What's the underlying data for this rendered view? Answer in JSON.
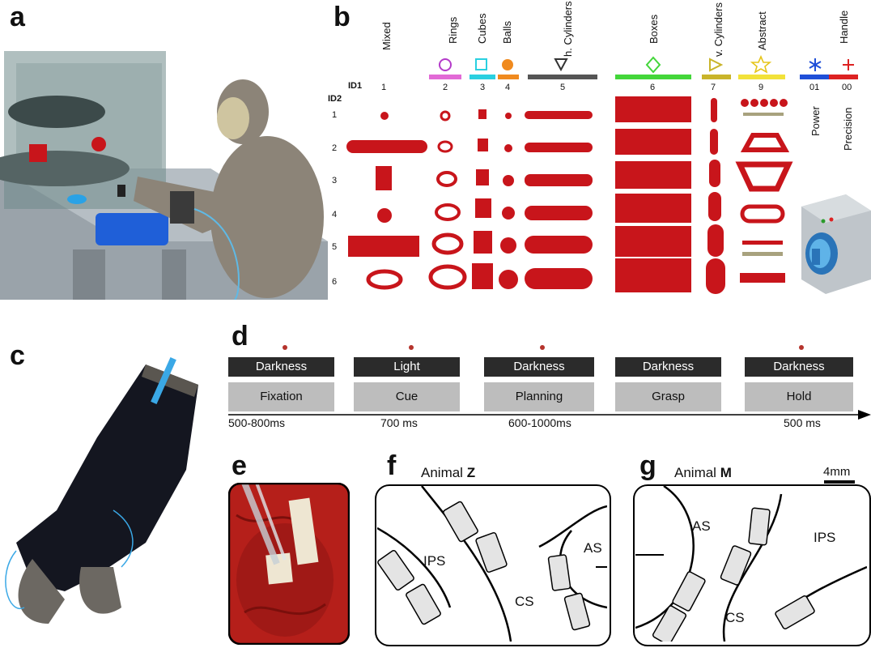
{
  "panels": {
    "a": "a",
    "b": "b",
    "c": "c",
    "d": "d",
    "e": "e",
    "f": "f",
    "g": "g"
  },
  "panel_b": {
    "id1_label": "ID1",
    "id2_label": "ID2",
    "columns": [
      {
        "name": "Mixed",
        "id": "1",
        "color": ""
      },
      {
        "name": "Rings",
        "id": "2",
        "color": "#e26ad6"
      },
      {
        "name": "Cubes",
        "id": "3",
        "color": "#2ad0e0"
      },
      {
        "name": "Balls",
        "id": "4",
        "color": "#f08a1e"
      },
      {
        "name": "h. Cylinders",
        "id": "5",
        "color": "#555555"
      },
      {
        "name": "Boxes",
        "id": "6",
        "color": "#43d63a"
      },
      {
        "name": "v. Cylinders",
        "id": "7",
        "color": "#c9b42a"
      },
      {
        "name": "Abstract",
        "id": "9",
        "color": "#f2e23a"
      },
      {
        "name": "Handle",
        "id": "",
        "color": ""
      }
    ],
    "handle_ids": [
      "01",
      "00"
    ],
    "handle_grips": [
      "Power",
      "Precision"
    ],
    "rows": [
      "1",
      "2",
      "3",
      "4",
      "5",
      "6"
    ]
  },
  "panel_d": {
    "phases": [
      {
        "light": "Darkness",
        "task": "Fixation",
        "duration": "500-800ms"
      },
      {
        "light": "Light",
        "task": "Cue",
        "duration": "700 ms"
      },
      {
        "light": "Darkness",
        "task": "Planning",
        "duration": "600-1000ms"
      },
      {
        "light": "Darkness",
        "task": "Grasp",
        "duration": ""
      },
      {
        "light": "Darkness",
        "task": "Hold",
        "duration": "500 ms"
      }
    ]
  },
  "panel_f": {
    "title_prefix": "Animal ",
    "title_bold": "Z",
    "labels": {
      "ips": "IPS",
      "cs": "CS",
      "as": "AS"
    }
  },
  "panel_g": {
    "title_prefix": "Animal ",
    "title_bold": "M",
    "scale": "4mm",
    "labels": {
      "as": "AS",
      "ips": "IPS",
      "cs": "CS"
    }
  },
  "colors": {
    "object_red": "#c8151b",
    "dark_bar": "#2b2b2b",
    "gray_box": "#bdbdbd",
    "brain_red": "#b51f1a"
  }
}
